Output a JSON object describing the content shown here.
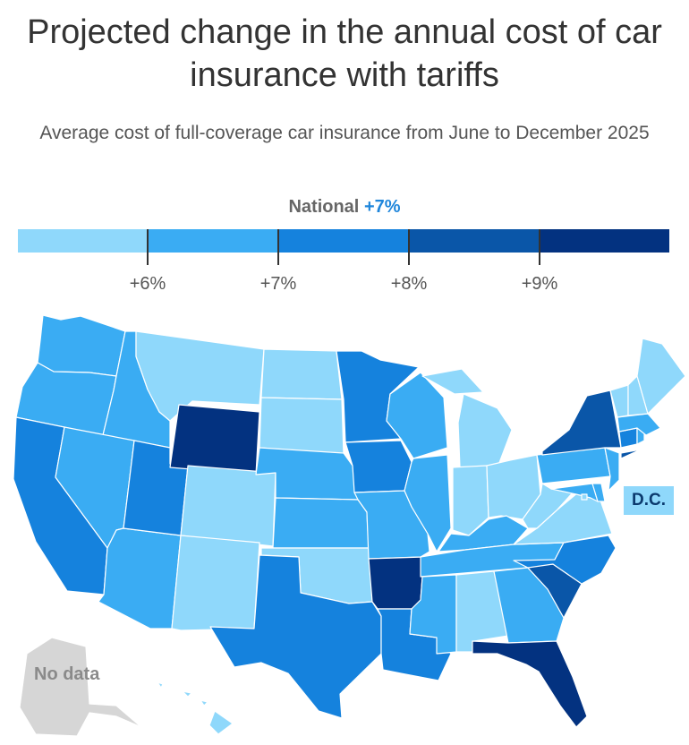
{
  "title": "Projected change in the annual cost of car insurance with tariffs",
  "subtitle": "Average cost of full-coverage car insurance from June to December 2025",
  "legend": {
    "national_label": "National",
    "national_value": "+7%",
    "ticks": [
      "+6%",
      "+7%",
      "+8%",
      "+9%"
    ],
    "bins": [
      {
        "label": "< +6%",
        "color": "#8fd8fb"
      },
      {
        "label": "+6% to +7%",
        "color": "#3aacf3"
      },
      {
        "label": "+7% to +8%",
        "color": "#1582dd"
      },
      {
        "label": "+8% to +9%",
        "color": "#0a56a8"
      },
      {
        "label": "> +9%",
        "color": "#033280"
      }
    ]
  },
  "dc_label": "D.C.",
  "no_data_label": "No data",
  "no_data_color": "#d6d6d6",
  "chart_data": {
    "type": "choropleth",
    "region": "United States",
    "state_bins": {
      "WA": 1,
      "OR": 1,
      "CA": 2,
      "ID": 1,
      "NV": 1,
      "AZ": 1,
      "UT": 2,
      "MT": 0,
      "WY": 4,
      "CO": 0,
      "NM": 0,
      "ND": 0,
      "SD": 0,
      "NE": 1,
      "KS": 1,
      "OK": 0,
      "TX": 2,
      "MN": 2,
      "IA": 2,
      "MO": 1,
      "AR": 4,
      "LA": 2,
      "WI": 1,
      "IL": 1,
      "MI": 0,
      "IN": 0,
      "OH": 0,
      "KY": 1,
      "TN": 1,
      "MS": 1,
      "AL": 0,
      "GA": 1,
      "FL": 4,
      "SC": 3,
      "NC": 2,
      "VA": 0,
      "WV": 0,
      "PA": 1,
      "NY": 3,
      "MD": 1,
      "DE": 1,
      "NJ": 1,
      "CT": 2,
      "RI": 1,
      "MA": 1,
      "VT": 0,
      "NH": 0,
      "ME": 0,
      "HI": 0,
      "DC": 0,
      "AK": null
    }
  }
}
